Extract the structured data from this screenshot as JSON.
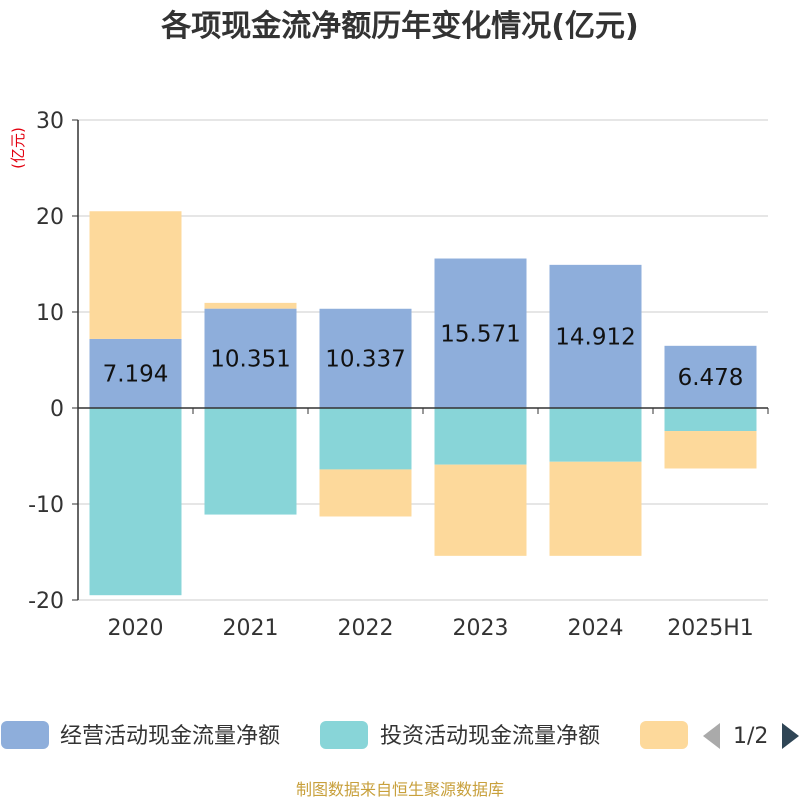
{
  "chart_data": {
    "type": "bar",
    "stacked": true,
    "title": "各项现金流净额历年变化情况(亿元)",
    "unit_label": "(亿元)",
    "categories": [
      "2020",
      "2021",
      "2022",
      "2023",
      "2024",
      "2025H1"
    ],
    "ylim": [
      -20,
      30
    ],
    "yticks": [
      30,
      20,
      10,
      0,
      -10,
      -20
    ],
    "grid": true,
    "legend_position": "bottom",
    "series": [
      {
        "name": "经营活动现金流量净额",
        "color": "#8eaedb",
        "values": [
          7.194,
          10.351,
          10.337,
          15.571,
          14.912,
          6.478
        ],
        "labels": [
          "7.194",
          "10.351",
          "10.337",
          "15.571",
          "14.912",
          "6.478"
        ]
      },
      {
        "name": "投资活动现金流量净额",
        "color": "#88d5d8",
        "values": [
          -19.5,
          -11.1,
          -6.4,
          -5.9,
          -5.6,
          -2.4
        ]
      },
      {
        "name": "",
        "color": "#fdd99b",
        "values": [
          13.3,
          0.6,
          -4.9,
          -9.5,
          -9.8,
          -3.9
        ]
      }
    ]
  },
  "legend": {
    "page": "1/2"
  },
  "source": "制图数据来自恒生聚源数据库"
}
